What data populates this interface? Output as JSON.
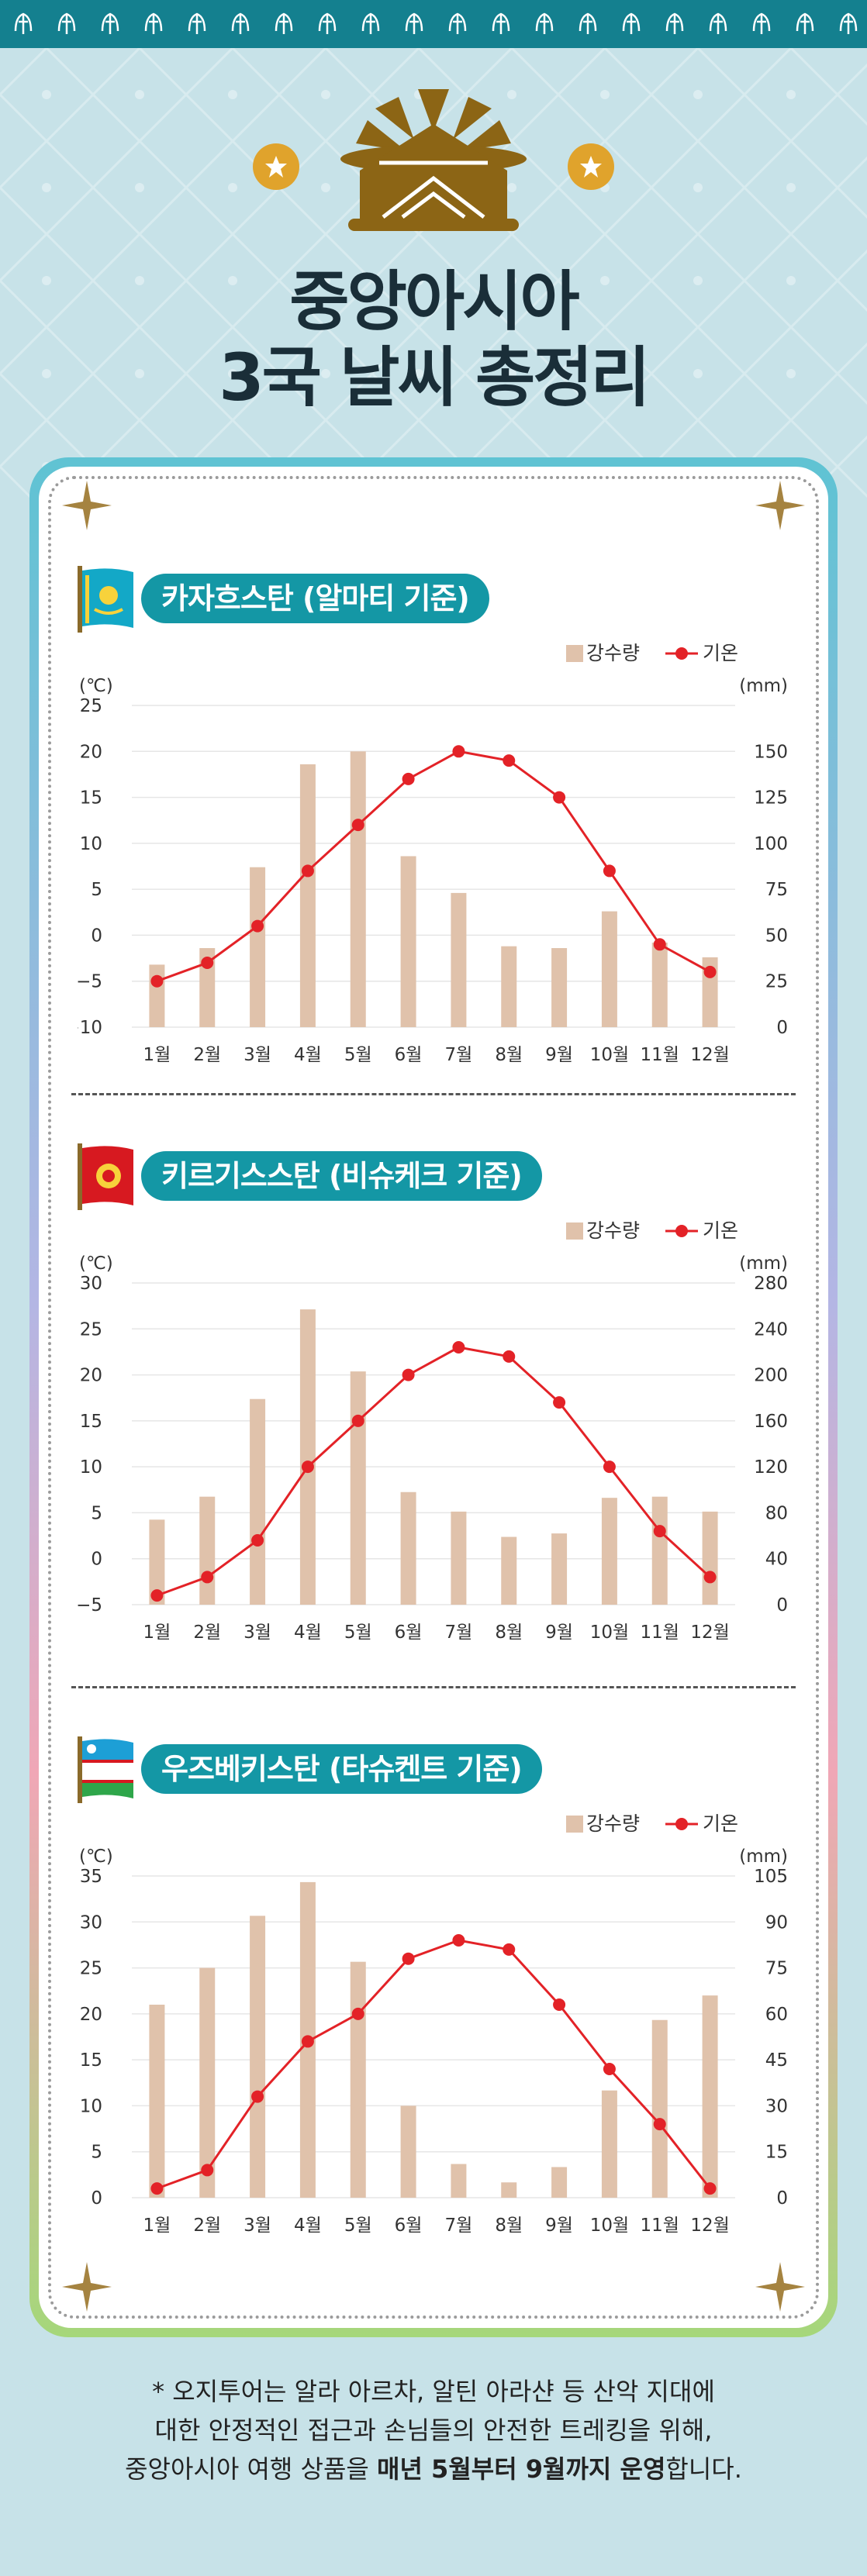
{
  "header": {
    "title_line1": "중앙아시아",
    "title_line2": "3국 날씨 총정리"
  },
  "colors": {
    "teal": "#14808f",
    "bar": "#e0c2ab",
    "line": "#e32227",
    "pill": "#1497a5"
  },
  "legend": {
    "precip": "강수량",
    "temp": "기온"
  },
  "units": {
    "left": "(℃)",
    "right": "(mm)"
  },
  "sections": [
    {
      "title": "카자흐스탄 (알마티 기준)",
      "flag": "kazakhstan-flag",
      "chart_data": {
        "type": "bar",
        "categories": [
          "1월",
          "2월",
          "3월",
          "4월",
          "5월",
          "6월",
          "7월",
          "8월",
          "9월",
          "10월",
          "11월",
          "12월"
        ],
        "series": [
          {
            "name": "강수량",
            "type": "bar",
            "axis": "right",
            "values": [
              34,
              43,
              87,
              143,
              150,
              93,
              73,
              44,
              43,
              63,
              46,
              38
            ]
          },
          {
            "name": "기온",
            "type": "line",
            "axis": "left",
            "values": [
              -5,
              -3,
              1,
              7,
              12,
              17,
              20,
              19,
              15,
              7,
              -1,
              -4
            ]
          }
        ],
        "y_left": {
          "min": -10,
          "max": 25,
          "ticks": [
            25,
            20,
            15,
            10,
            5,
            0,
            -5,
            -10
          ],
          "tick_labels": [
            "25",
            "20",
            "15",
            "10",
            "5",
            "0",
            "−5",
            "−10"
          ]
        },
        "y_right": {
          "min": 0,
          "max": 175,
          "ticks": [
            150,
            125,
            100,
            75,
            50,
            25,
            0
          ],
          "tick_labels": [
            "150",
            "125",
            "100",
            "75",
            "50",
            "25",
            "0"
          ]
        }
      }
    },
    {
      "title": "키르기스스탄 (비슈케크 기준)",
      "flag": "kyrgyzstan-flag",
      "chart_data": {
        "type": "bar",
        "categories": [
          "1월",
          "2월",
          "3월",
          "4월",
          "5월",
          "6월",
          "7월",
          "8월",
          "9월",
          "10월",
          "11월",
          "12월"
        ],
        "series": [
          {
            "name": "강수량",
            "type": "bar",
            "axis": "right",
            "values": [
              74,
              94,
              179,
              257,
              203,
              98,
              81,
              59,
              62,
              93,
              94,
              81
            ]
          },
          {
            "name": "기온",
            "type": "line",
            "axis": "left",
            "values": [
              -4,
              -2,
              2,
              10,
              15,
              20,
              23,
              22,
              17,
              10,
              3,
              -2
            ]
          }
        ],
        "y_left": {
          "min": -5,
          "max": 30,
          "ticks": [
            30,
            25,
            20,
            15,
            10,
            5,
            0,
            -5
          ],
          "tick_labels": [
            "30",
            "25",
            "20",
            "15",
            "10",
            "5",
            "0",
            "−5"
          ]
        },
        "y_right": {
          "min": 0,
          "max": 280,
          "ticks": [
            280,
            240,
            200,
            160,
            120,
            80,
            40,
            0
          ],
          "tick_labels": [
            "280",
            "240",
            "200",
            "160",
            "120",
            "80",
            "40",
            "0"
          ]
        }
      }
    },
    {
      "title": "우즈베키스탄 (타슈켄트 기준)",
      "flag": "uzbekistan-flag",
      "chart_data": {
        "type": "bar",
        "categories": [
          "1월",
          "2월",
          "3월",
          "4월",
          "5월",
          "6월",
          "7월",
          "8월",
          "9월",
          "10월",
          "11월",
          "12월"
        ],
        "series": [
          {
            "name": "강수량",
            "type": "bar",
            "axis": "right",
            "values": [
              63,
              75,
              92,
              103,
              77,
              30,
              11,
              5,
              10,
              35,
              58,
              66
            ]
          },
          {
            "name": "기온",
            "type": "line",
            "axis": "left",
            "values": [
              1,
              3,
              11,
              17,
              20,
              26,
              28,
              27,
              21,
              14,
              8,
              1
            ]
          }
        ],
        "y_left": {
          "min": 0,
          "max": 35,
          "ticks": [
            35,
            30,
            25,
            20,
            15,
            10,
            5,
            0
          ],
          "tick_labels": [
            "35",
            "30",
            "25",
            "20",
            "15",
            "10",
            "5",
            "0"
          ]
        },
        "y_right": {
          "min": 0,
          "max": 105,
          "ticks": [
            105,
            90,
            75,
            60,
            45,
            30,
            15,
            0
          ],
          "tick_labels": [
            "105",
            "90",
            "75",
            "60",
            "45",
            "30",
            "15",
            "0"
          ]
        }
      }
    }
  ],
  "footnote": {
    "line1": "* 오지투어는 알라 아르차, 알틴 아라샨 등 산악 지대에",
    "line2": "대한 안정적인 접근과 손님들의 안전한 트레킹을 위해,",
    "line3_a": "중앙아시아 여행 상품을 ",
    "line3_b": "매년 5월부터 9월까지 운영",
    "line3_c": "합니다."
  }
}
